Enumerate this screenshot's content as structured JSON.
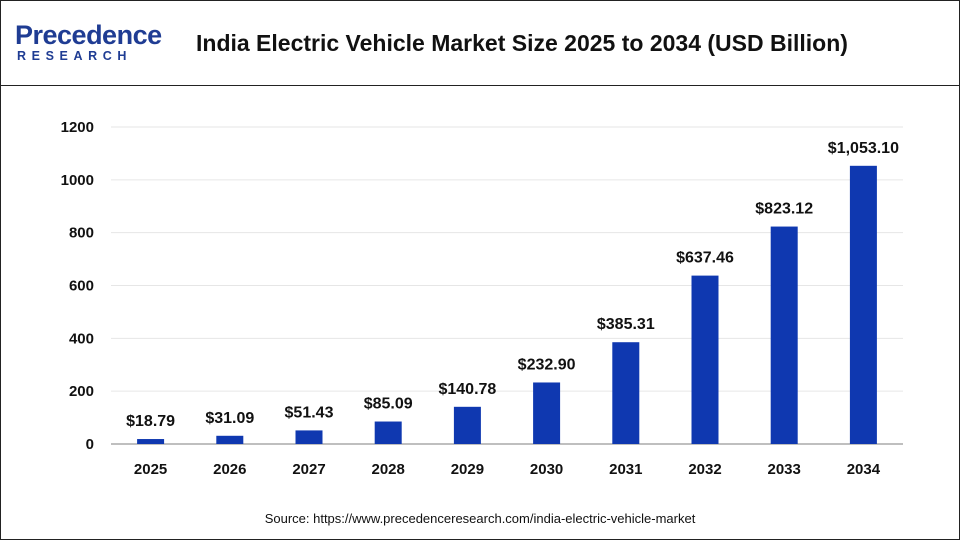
{
  "header": {
    "logo_main": "Precedence",
    "logo_sub": "RESEARCH",
    "title": "India Electric Vehicle Market Size 2025 to 2034 (USD Billion)"
  },
  "source": "Source: https://www.precedenceresearch.com/india-electric-vehicle-market",
  "colors": {
    "bar": "#0f38b0",
    "grid": "#e6e6e6",
    "axis": "#999999",
    "text": "#111111"
  },
  "chart_data": {
    "type": "bar",
    "title": "India Electric Vehicle Market Size 2025 to 2034 (USD Billion)",
    "categories": [
      "2025",
      "2026",
      "2027",
      "2028",
      "2029",
      "2030",
      "2031",
      "2032",
      "2033",
      "2034"
    ],
    "values": [
      18.79,
      31.09,
      51.43,
      85.09,
      140.78,
      232.9,
      385.31,
      637.46,
      823.12,
      1053.1
    ],
    "data_labels": [
      "$18.79",
      "$31.09",
      "$51.43",
      "$85.09",
      "$140.78",
      "$232.90",
      "$385.31",
      "$637.46",
      "$823.12",
      "$1,053.10"
    ],
    "yticks": [
      0,
      200,
      400,
      600,
      800,
      1000,
      1200
    ],
    "ylim": [
      0,
      1200
    ],
    "xlabel": "",
    "ylabel": "",
    "grid": true,
    "legend": "none"
  }
}
